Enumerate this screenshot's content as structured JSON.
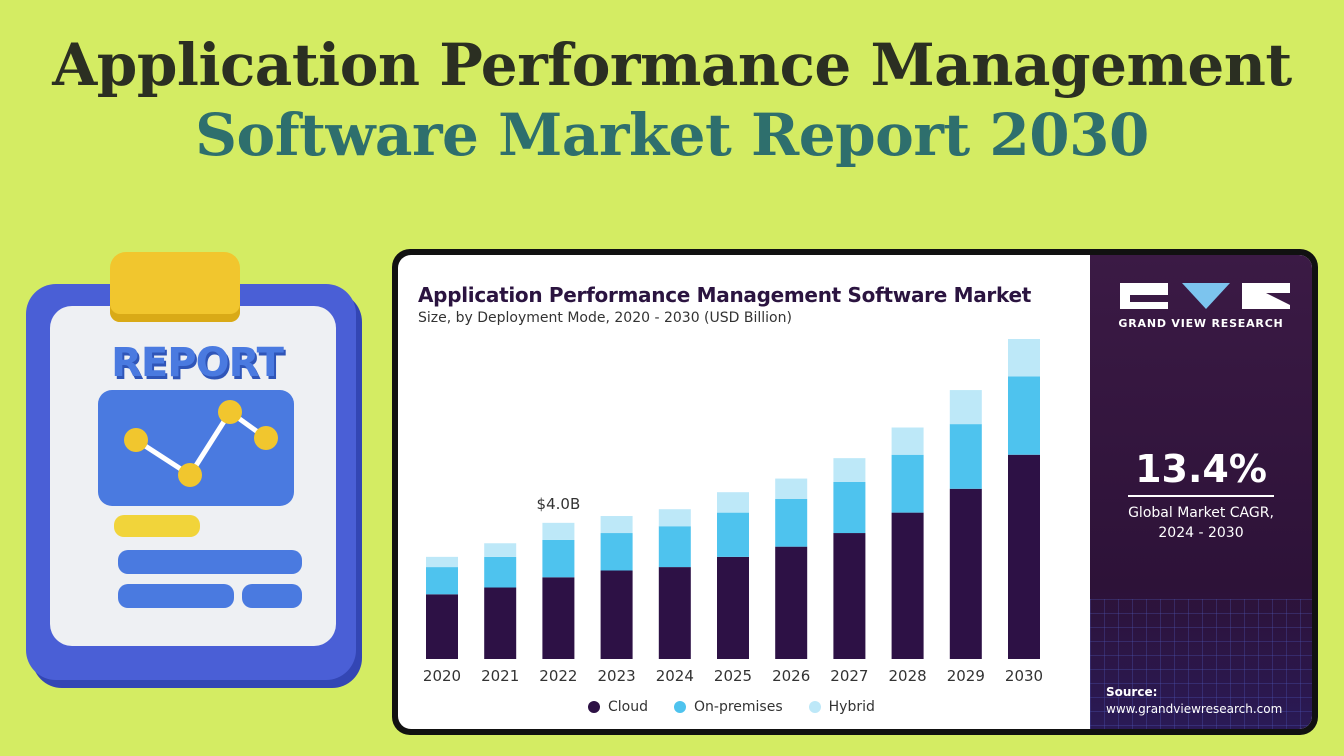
{
  "hero": {
    "line1": "Application Performance Management",
    "line2": "Software Market Report 2030"
  },
  "illustration": {
    "word": "REPORT",
    "icon": "report-clipboard-icon"
  },
  "brand": {
    "name": "GRAND VIEW RESEARCH",
    "cagr_value": "13.4%",
    "cagr_label_line1": "Global Market CAGR,",
    "cagr_label_line2": "2024 - 2030",
    "source_title": "Source:",
    "source_url": "www.grandviewresearch.com"
  },
  "colors": {
    "background": "#d4ec63",
    "cloud": "#2d1145",
    "on_premises": "#4ec3ee",
    "hybrid": "#bde8f8",
    "panel": "#3b1a45"
  },
  "chart_data": {
    "type": "bar",
    "stacked": true,
    "title": "Application Performance Management Software Market",
    "subtitle": "Size, by Deployment Mode, 2020 - 2030 (USD Billion)",
    "categories": [
      "2020",
      "2021",
      "2022",
      "2023",
      "2024",
      "2025",
      "2026",
      "2027",
      "2028",
      "2029",
      "2030"
    ],
    "series": [
      {
        "name": "Cloud",
        "color": "#2d1145",
        "values": [
          1.9,
          2.1,
          2.4,
          2.6,
          2.7,
          3.0,
          3.3,
          3.7,
          4.3,
          5.0,
          6.0
        ]
      },
      {
        "name": "On-premises",
        "color": "#4ec3ee",
        "values": [
          0.8,
          0.9,
          1.1,
          1.1,
          1.2,
          1.3,
          1.4,
          1.5,
          1.7,
          1.9,
          2.3
        ]
      },
      {
        "name": "Hybrid",
        "color": "#bde8f8",
        "values": [
          0.3,
          0.4,
          0.5,
          0.5,
          0.5,
          0.6,
          0.6,
          0.7,
          0.8,
          1.0,
          1.1
        ]
      }
    ],
    "annotations": [
      {
        "category": "2022",
        "text": "$4.0B"
      }
    ],
    "ylim": [
      0,
      9.4
    ],
    "grid": false,
    "legend": "bottom"
  }
}
